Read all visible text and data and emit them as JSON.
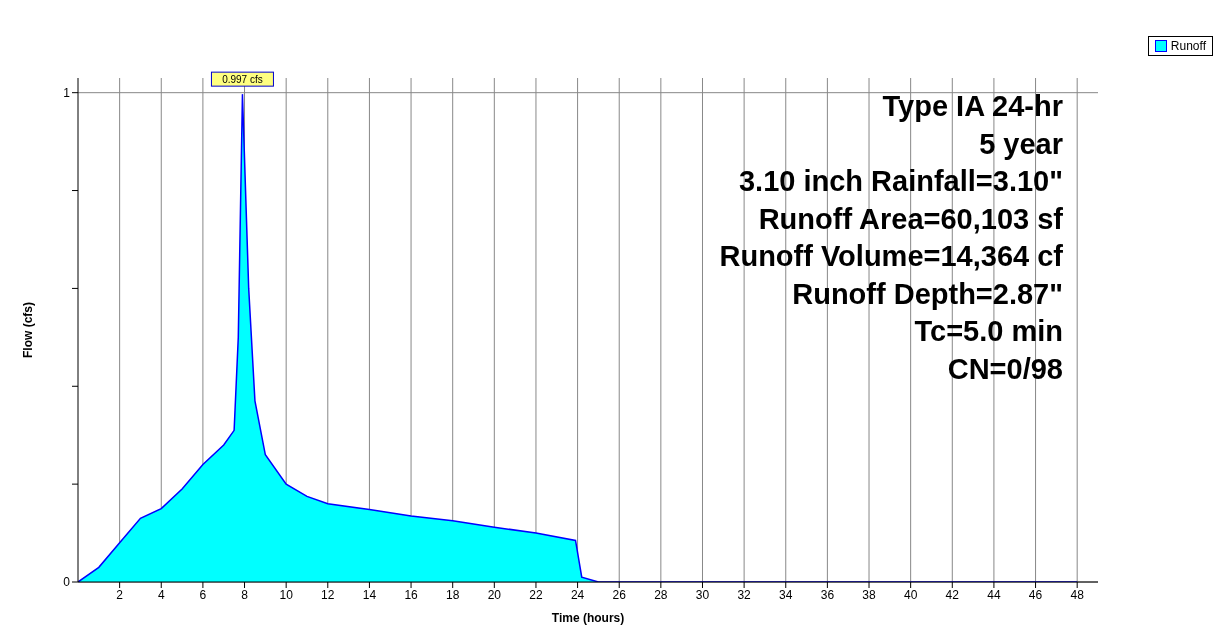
{
  "chart_data": {
    "type": "area",
    "xlabel": "Time  (hours)",
    "ylabel": "Flow  (cfs)",
    "x": [
      0,
      1,
      2,
      3,
      4,
      5,
      6,
      7,
      7.5,
      7.7,
      7.9,
      8.2,
      8.5,
      9,
      10,
      11,
      12,
      14,
      16,
      18,
      20,
      22,
      23.9,
      24.2,
      25,
      48
    ],
    "series": [
      {
        "name": "Runoff",
        "color": "#00ffff",
        "values": [
          0,
          0.03,
          0.08,
          0.13,
          0.15,
          0.19,
          0.24,
          0.28,
          0.31,
          0.5,
          0.997,
          0.6,
          0.37,
          0.26,
          0.2,
          0.175,
          0.16,
          0.148,
          0.135,
          0.125,
          0.112,
          0.1,
          0.085,
          0.01,
          0,
          0
        ]
      }
    ],
    "xlim": [
      0,
      49
    ],
    "xticks": [
      2,
      4,
      6,
      8,
      10,
      12,
      14,
      16,
      18,
      20,
      22,
      24,
      26,
      28,
      30,
      32,
      34,
      36,
      38,
      40,
      42,
      44,
      46,
      48
    ],
    "ylim": [
      0,
      1.03
    ],
    "yticks": [
      0,
      {
        "value": 0.2,
        "label": null
      },
      {
        "value": 0.4,
        "label": null
      },
      {
        "value": 0.6,
        "label": null
      },
      {
        "value": 0.8,
        "label": null
      },
      1
    ],
    "grid": true,
    "legend": "top right",
    "annotations": [
      {
        "text": "0.997 cfs",
        "x": 7.9,
        "y": 0.997
      },
      "Type IA 24-hr",
      "5 year",
      "3.10 inch Rainfall=3.10\"",
      "Runoff Area=60,103 sf",
      "Runoff Volume=14,364 cf",
      "Runoff Depth=2.87\"",
      "Tc=5.0 min",
      "CN=0/98"
    ]
  }
}
